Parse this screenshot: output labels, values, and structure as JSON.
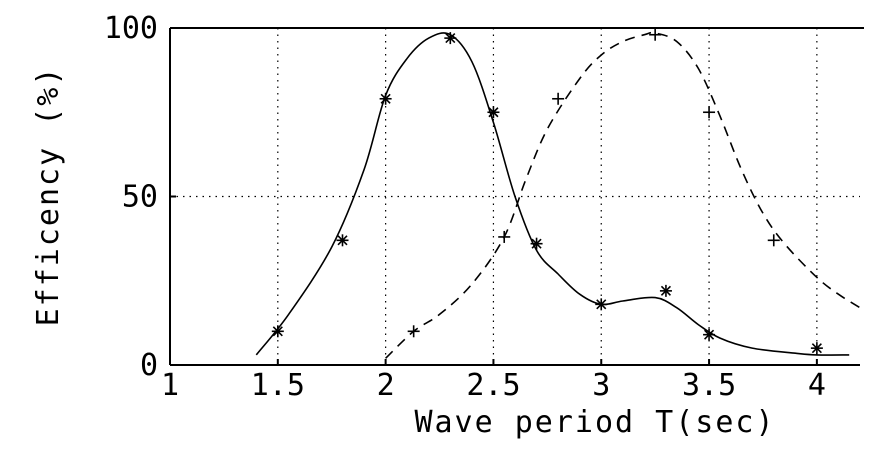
{
  "chart_data": {
    "type": "line",
    "xlabel": "Wave period T(sec)",
    "ylabel": "Efficency (%)",
    "xlim": [
      1,
      4.2
    ],
    "ylim": [
      0,
      100
    ],
    "x_ticks": [
      "1",
      "1.5",
      "2",
      "2.5",
      "3",
      "3.5",
      "4"
    ],
    "y_ticks": [
      "0",
      "50",
      "100"
    ],
    "grid": "dotted",
    "series": [
      {
        "style": "solid",
        "marker": "asterisk",
        "curve": [
          [
            1.4,
            3
          ],
          [
            1.55,
            15
          ],
          [
            1.75,
            35
          ],
          [
            1.9,
            58
          ],
          [
            2.0,
            80
          ],
          [
            2.1,
            91
          ],
          [
            2.2,
            97
          ],
          [
            2.3,
            98
          ],
          [
            2.4,
            90
          ],
          [
            2.5,
            72
          ],
          [
            2.6,
            50
          ],
          [
            2.7,
            34
          ],
          [
            2.8,
            27
          ],
          [
            2.9,
            21
          ],
          [
            3.0,
            18
          ],
          [
            3.1,
            19
          ],
          [
            3.25,
            20
          ],
          [
            3.35,
            17
          ],
          [
            3.45,
            12
          ],
          [
            3.55,
            8
          ],
          [
            3.7,
            5
          ],
          [
            3.9,
            3.5
          ],
          [
            4.0,
            3
          ],
          [
            4.15,
            3
          ]
        ],
        "points": [
          [
            1.5,
            10
          ],
          [
            1.8,
            37
          ],
          [
            2.0,
            79
          ],
          [
            2.3,
            97
          ],
          [
            2.5,
            75
          ],
          [
            2.7,
            36
          ],
          [
            3.0,
            18
          ],
          [
            3.3,
            22
          ],
          [
            3.5,
            9
          ],
          [
            4.0,
            5
          ]
        ]
      },
      {
        "style": "dashed",
        "marker": "plus",
        "curve": [
          [
            2.0,
            2
          ],
          [
            2.13,
            10
          ],
          [
            2.25,
            15
          ],
          [
            2.4,
            24
          ],
          [
            2.55,
            38
          ],
          [
            2.65,
            55
          ],
          [
            2.75,
            70
          ],
          [
            2.9,
            85
          ],
          [
            3.0,
            92
          ],
          [
            3.1,
            96
          ],
          [
            3.2,
            98
          ],
          [
            3.25,
            98.5
          ],
          [
            3.35,
            96
          ],
          [
            3.45,
            88
          ],
          [
            3.55,
            74
          ],
          [
            3.65,
            58
          ],
          [
            3.75,
            45
          ],
          [
            3.85,
            36
          ],
          [
            4.0,
            26
          ],
          [
            4.1,
            21
          ],
          [
            4.2,
            17
          ]
        ],
        "points": [
          [
            2.13,
            10
          ],
          [
            2.55,
            38
          ],
          [
            2.8,
            79
          ],
          [
            3.25,
            98
          ],
          [
            3.5,
            75
          ],
          [
            3.8,
            37
          ]
        ]
      }
    ]
  }
}
